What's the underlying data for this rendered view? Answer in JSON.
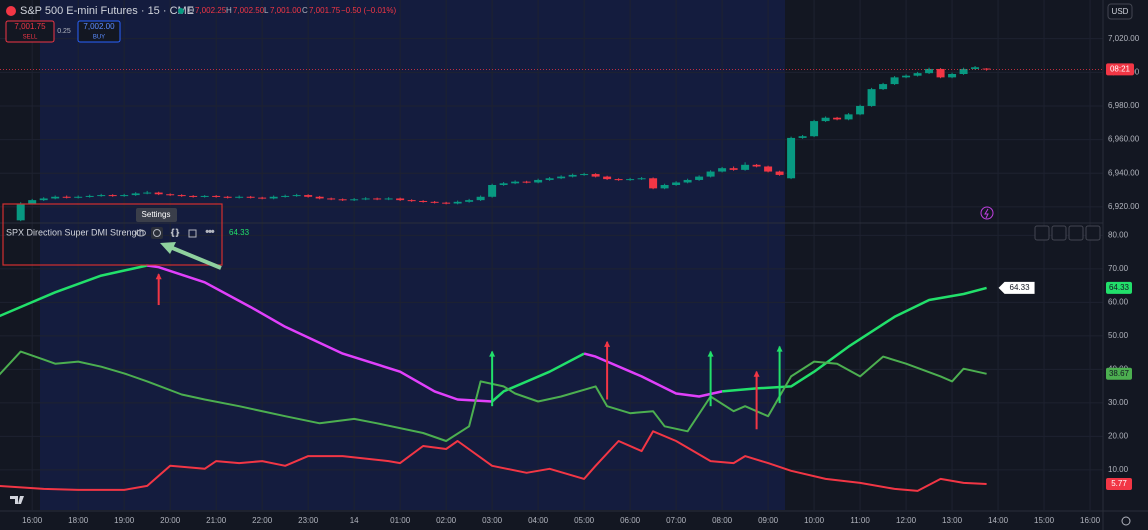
{
  "header": {
    "title": "S&P 500 E-mini Futures · 15 · CME",
    "open_label": "O",
    "open": "7,002.25",
    "high_label": "H",
    "high": "7,002.50",
    "low_label": "L",
    "low": "7,001.00",
    "close_label": "C",
    "close": "7,001.75",
    "change": "−0.50 (−0.01%)"
  },
  "trade": {
    "sell_price": "7,001.75",
    "sell": "SELL",
    "spread": "0.25",
    "buy_price": "7,002.00",
    "buy": "BUY"
  },
  "currency": "USD",
  "indicator_name": "SPX Direction Super DMI Strength",
  "tooltip": "Settings",
  "countdown": "08:21",
  "chart_data": [
    {
      "type": "candlestick",
      "up_color": "#089981",
      "down_color": "#f23645",
      "price_line_color": "#f23645",
      "xlim": [
        -6.8,
        89.3
      ],
      "ylim": [
        6911,
        7043
      ],
      "yticks": [
        {
          "value": 6920,
          "label": "6,920.00"
        },
        {
          "value": 6940,
          "label": "6,940.00"
        },
        {
          "value": 6960,
          "label": "6,960.00"
        },
        {
          "value": 6980,
          "label": "6,980.00"
        },
        {
          "value": 7000,
          "label": "7,000.00"
        },
        {
          "value": 7020,
          "label": "7,020.00"
        }
      ],
      "x": [
        -5,
        -4,
        -3,
        -2,
        -1,
        0,
        1,
        2,
        3,
        4,
        5,
        6,
        7,
        8,
        9,
        10,
        11,
        12,
        13,
        14,
        15,
        16,
        17,
        18,
        19,
        20,
        21,
        22,
        23,
        24,
        25,
        26,
        27,
        28,
        29,
        30,
        31,
        32,
        33,
        34,
        35,
        36,
        37,
        38,
        39,
        40,
        41,
        42,
        43,
        44,
        45,
        46,
        47,
        48,
        49,
        50,
        51,
        52,
        53,
        54,
        55,
        56,
        57,
        58,
        59,
        60,
        61,
        62,
        63,
        64,
        65,
        66,
        67,
        68,
        69,
        70,
        71,
        72,
        73,
        74,
        75,
        76,
        77,
        78,
        79
      ],
      "candles": [
        [
          6912,
          6922.75,
          6911.5,
          6922
        ],
        [
          6922,
          6924.75,
          6921.5,
          6924
        ],
        [
          6924,
          6925.75,
          6923.5,
          6925
        ],
        [
          6925,
          6926.75,
          6924.5,
          6926
        ],
        [
          6926,
          6926.75,
          6925,
          6925.5
        ],
        [
          6925.5,
          6926.75,
          6925,
          6926
        ],
        [
          6926,
          6927.25,
          6925.5,
          6926.5
        ],
        [
          6926.5,
          6927.75,
          6926,
          6927
        ],
        [
          6927,
          6927.5,
          6926,
          6926.5
        ],
        [
          6926.5,
          6927.75,
          6926,
          6927
        ],
        [
          6927,
          6928.75,
          6926.5,
          6928
        ],
        [
          6928,
          6929.5,
          6927.5,
          6928.5
        ],
        [
          6928.5,
          6929,
          6927,
          6927.5
        ],
        [
          6927.5,
          6928,
          6926.5,
          6927
        ],
        [
          6927,
          6927.5,
          6926,
          6926.5
        ],
        [
          6926.5,
          6927,
          6925.5,
          6926
        ],
        [
          6926,
          6927,
          6925.5,
          6926.5
        ],
        [
          6926.5,
          6927,
          6925.5,
          6926
        ],
        [
          6926,
          6926.5,
          6925,
          6925.5
        ],
        [
          6925.5,
          6926.75,
          6925,
          6926
        ],
        [
          6926,
          6926.5,
          6925,
          6925.5
        ],
        [
          6925.5,
          6926,
          6924.5,
          6925
        ],
        [
          6925,
          6926.75,
          6924.5,
          6926
        ],
        [
          6926,
          6927.25,
          6925.5,
          6926.5
        ],
        [
          6926.5,
          6927.75,
          6926,
          6927
        ],
        [
          6927,
          6927.5,
          6925.5,
          6926
        ],
        [
          6926,
          6926.5,
          6924.5,
          6925
        ],
        [
          6925,
          6925.5,
          6924,
          6924.5
        ],
        [
          6924.5,
          6925,
          6923.5,
          6924
        ],
        [
          6924,
          6925.25,
          6923.5,
          6924.5
        ],
        [
          6924.5,
          6925.75,
          6924,
          6925
        ],
        [
          6925,
          6925.5,
          6924,
          6924.5
        ],
        [
          6924.5,
          6925.75,
          6924,
          6925
        ],
        [
          6925,
          6925.5,
          6923.5,
          6924
        ],
        [
          6924,
          6924.5,
          6923,
          6923.5
        ],
        [
          6923.5,
          6924,
          6922.5,
          6923
        ],
        [
          6923,
          6923.5,
          6922,
          6922.5
        ],
        [
          6922.5,
          6923,
          6921.5,
          6922
        ],
        [
          6922,
          6923.75,
          6921.5,
          6923
        ],
        [
          6923,
          6924.75,
          6922.5,
          6924
        ],
        [
          6924,
          6926.75,
          6923.5,
          6926
        ],
        [
          6926,
          6933.75,
          6925.5,
          6933
        ],
        [
          6933,
          6934.75,
          6932.5,
          6934
        ],
        [
          6934,
          6935.75,
          6933.5,
          6935
        ],
        [
          6935,
          6935.5,
          6934,
          6934.5
        ],
        [
          6934.5,
          6936.75,
          6934,
          6936
        ],
        [
          6936,
          6937.75,
          6935.5,
          6937
        ],
        [
          6937,
          6938.75,
          6936.5,
          6938
        ],
        [
          6938,
          6939.75,
          6937.5,
          6939
        ],
        [
          6939,
          6940.25,
          6938.5,
          6939.5
        ],
        [
          6939.5,
          6940,
          6937.5,
          6938
        ],
        [
          6938,
          6938.5,
          6936,
          6936.5
        ],
        [
          6936.5,
          6937,
          6935.5,
          6936
        ],
        [
          6936,
          6937.25,
          6935.5,
          6936.5
        ],
        [
          6936.5,
          6937.75,
          6936,
          6937
        ],
        [
          6937,
          6937.5,
          6930.5,
          6931
        ],
        [
          6931,
          6933.75,
          6930.5,
          6933
        ],
        [
          6933,
          6935.25,
          6932.5,
          6934.5
        ],
        [
          6934.5,
          6936.75,
          6934,
          6936
        ],
        [
          6936,
          6938.75,
          6935.5,
          6938
        ],
        [
          6938,
          6941.75,
          6937.5,
          6941
        ],
        [
          6941,
          6943.75,
          6940.5,
          6943
        ],
        [
          6943,
          6944,
          6941.5,
          6942
        ],
        [
          6942,
          6946.5,
          6941.5,
          6945
        ],
        [
          6945,
          6945.5,
          6943.5,
          6944
        ],
        [
          6944,
          6944.5,
          6940.5,
          6941
        ],
        [
          6941,
          6941.5,
          6938.5,
          6939
        ],
        [
          6937,
          6961.75,
          6936.5,
          6961
        ],
        [
          6961,
          6962.75,
          6960.5,
          6962
        ],
        [
          6962,
          6971.75,
          6961.5,
          6971
        ],
        [
          6971,
          6973.75,
          6970.5,
          6973
        ],
        [
          6973,
          6973.5,
          6971.5,
          6972
        ],
        [
          6972,
          6975.75,
          6971.5,
          6975
        ],
        [
          6975,
          6980.75,
          6974.5,
          6980
        ],
        [
          6980,
          6990.75,
          6979.5,
          6990
        ],
        [
          6990,
          6993.75,
          6989.5,
          6993
        ],
        [
          6993,
          6997.75,
          6992.5,
          6997
        ],
        [
          6997,
          6998.75,
          6996.5,
          6998
        ],
        [
          6998,
          7000.25,
          6997.5,
          6999.5
        ],
        [
          6999.5,
          7002.75,
          6999,
          7002
        ],
        [
          7002,
          7002.5,
          6996.5,
          6997
        ],
        [
          6997,
          6999.75,
          6996.5,
          6999
        ],
        [
          6999,
          7002.75,
          6998.5,
          7002
        ],
        [
          7002,
          7003.75,
          7001.5,
          7003
        ],
        [
          7002.25,
          7002.5,
          7001,
          7001.75
        ]
      ]
    },
    {
      "type": "line",
      "xlim": [
        -6.8,
        89.3
      ],
      "ylim": [
        -2,
        83.4
      ],
      "yticks": [
        {
          "value": 10,
          "label": "10.00"
        },
        {
          "value": 20,
          "label": "20.00"
        },
        {
          "value": 30,
          "label": "30.00"
        },
        {
          "value": 40,
          "label": "40.00"
        },
        {
          "value": 50,
          "label": "50.00"
        },
        {
          "value": 60,
          "label": "60.00"
        },
        {
          "value": 70,
          "label": "70.00"
        },
        {
          "value": 80,
          "label": "80.00"
        }
      ],
      "xticks": [
        {
          "value": -4,
          "label": "16:00"
        },
        {
          "value": 0,
          "label": "18:00"
        },
        {
          "value": 4,
          "label": "19:00"
        },
        {
          "value": 8,
          "label": "20:00"
        },
        {
          "value": 12,
          "label": "21:00"
        },
        {
          "value": 16,
          "label": "22:00"
        },
        {
          "value": 20,
          "label": "23:00"
        },
        {
          "value": 24,
          "label": "14"
        },
        {
          "value": 28,
          "label": "01:00"
        },
        {
          "value": 32,
          "label": "02:00"
        },
        {
          "value": 36,
          "label": "03:00"
        },
        {
          "value": 40,
          "label": "04:00"
        },
        {
          "value": 44,
          "label": "05:00"
        },
        {
          "value": 48,
          "label": "06:00"
        },
        {
          "value": 52,
          "label": "07:00"
        },
        {
          "value": 56,
          "label": "08:00"
        },
        {
          "value": 60,
          "label": "09:00"
        },
        {
          "value": 64,
          "label": "10:00"
        },
        {
          "value": 68,
          "label": "11:00"
        },
        {
          "value": 72,
          "label": "12:00"
        },
        {
          "value": 76,
          "label": "13:00"
        },
        {
          "value": 80,
          "label": "14:00"
        },
        {
          "value": 84,
          "label": "15:00"
        },
        {
          "value": 88,
          "label": "16:00"
        }
      ],
      "series": [
        {
          "color": "#22e06b",
          "width": 2.5,
          "callout": true,
          "x": [
            -7,
            -2,
            2,
            6,
            7,
            11,
            15,
            18,
            23,
            28,
            31,
            33,
            36,
            37,
            41,
            44,
            45,
            49,
            52,
            54,
            56,
            59,
            62,
            64,
            67,
            71,
            74,
            77,
            79
          ],
          "values": [
            55.7,
            63,
            68,
            71,
            70.5,
            66,
            58.6,
            52.7,
            44.7,
            39.3,
            33.4,
            31,
            30.4,
            33.4,
            39.3,
            44.7,
            43.8,
            37.9,
            32.8,
            31.9,
            33.4,
            34.3,
            34.9,
            39.3,
            46.8,
            55.7,
            60.7,
            62.5,
            64.33
          ],
          "point_colors": [
            "#22e06b",
            "#22e06b",
            "#22e06b",
            "#22e06b",
            "#e040fb",
            "#e040fb",
            "#e040fb",
            "#e040fb",
            "#e040fb",
            "#e040fb",
            "#e040fb",
            "#e040fb",
            "#e040fb",
            "#22e06b",
            "#22e06b",
            "#22e06b",
            "#e040fb",
            "#e040fb",
            "#e040fb",
            "#e040fb",
            "#e040fb",
            "#22e06b",
            "#22e06b",
            "#22e06b",
            "#22e06b",
            "#22e06b",
            "#22e06b",
            "#22e06b",
            "#22e06b"
          ]
        },
        {
          "color": "#4caf50",
          "width": 2,
          "x": [
            -7,
            -5,
            -3,
            -2,
            0,
            2,
            4,
            6,
            9,
            11,
            14,
            18,
            21,
            24,
            26,
            30,
            32,
            34,
            35,
            37,
            38,
            40,
            42,
            45,
            46,
            48,
            50,
            51,
            53,
            55,
            57,
            58,
            60,
            62,
            64,
            66,
            68,
            70,
            72,
            75,
            76,
            77,
            79
          ],
          "values": [
            37.9,
            45.3,
            42.9,
            41.7,
            42.3,
            40.8,
            38.8,
            36.4,
            32.5,
            31,
            29,
            26,
            23.9,
            25.2,
            23.9,
            21,
            18.6,
            23,
            36.4,
            34.9,
            32.8,
            30.4,
            31.9,
            34.9,
            29,
            26.9,
            27.5,
            23,
            21.5,
            31.9,
            27.5,
            29,
            26,
            37.9,
            42.3,
            41.7,
            37.9,
            43.8,
            41.7,
            37.9,
            36.4,
            40.2,
            38.67
          ]
        },
        {
          "color": "#f23645",
          "width": 2,
          "x": [
            -7,
            -3,
            0,
            4,
            6,
            8,
            11,
            12,
            14,
            16,
            18,
            20,
            23,
            27,
            28,
            30,
            32,
            33,
            36,
            39,
            41,
            44,
            45,
            47,
            49,
            50,
            52,
            55,
            57,
            58,
            60,
            62,
            65,
            68,
            71,
            73,
            75,
            77,
            79
          ],
          "values": [
            5.2,
            4.3,
            4,
            4,
            5.2,
            11.2,
            10.3,
            12.6,
            12,
            12.6,
            11.2,
            14.1,
            14.1,
            12.6,
            12,
            17.1,
            16.2,
            18.6,
            11.2,
            9.1,
            10.3,
            7.3,
            11.2,
            18.6,
            15.6,
            21.5,
            18.6,
            12.6,
            12,
            14.1,
            12,
            9.7,
            7.3,
            6.1,
            4.3,
            3.7,
            7.3,
            6.1,
            5.77
          ]
        }
      ],
      "signals": [
        {
          "x": 7,
          "top": 68.4,
          "bottom": 59.2,
          "color": "#f23645"
        },
        {
          "x": 46,
          "top": 48.2,
          "bottom": 31,
          "color": "#f23645"
        },
        {
          "x": 59,
          "top": 39.3,
          "bottom": 22.1,
          "color": "#f23645"
        },
        {
          "x": 36,
          "top": 45.3,
          "bottom": 29,
          "color": "#22e06b"
        },
        {
          "x": 55,
          "top": 45.3,
          "bottom": 29,
          "color": "#22e06b"
        },
        {
          "x": 61,
          "top": 46.8,
          "bottom": 29.9,
          "color": "#22e06b"
        }
      ]
    }
  ]
}
